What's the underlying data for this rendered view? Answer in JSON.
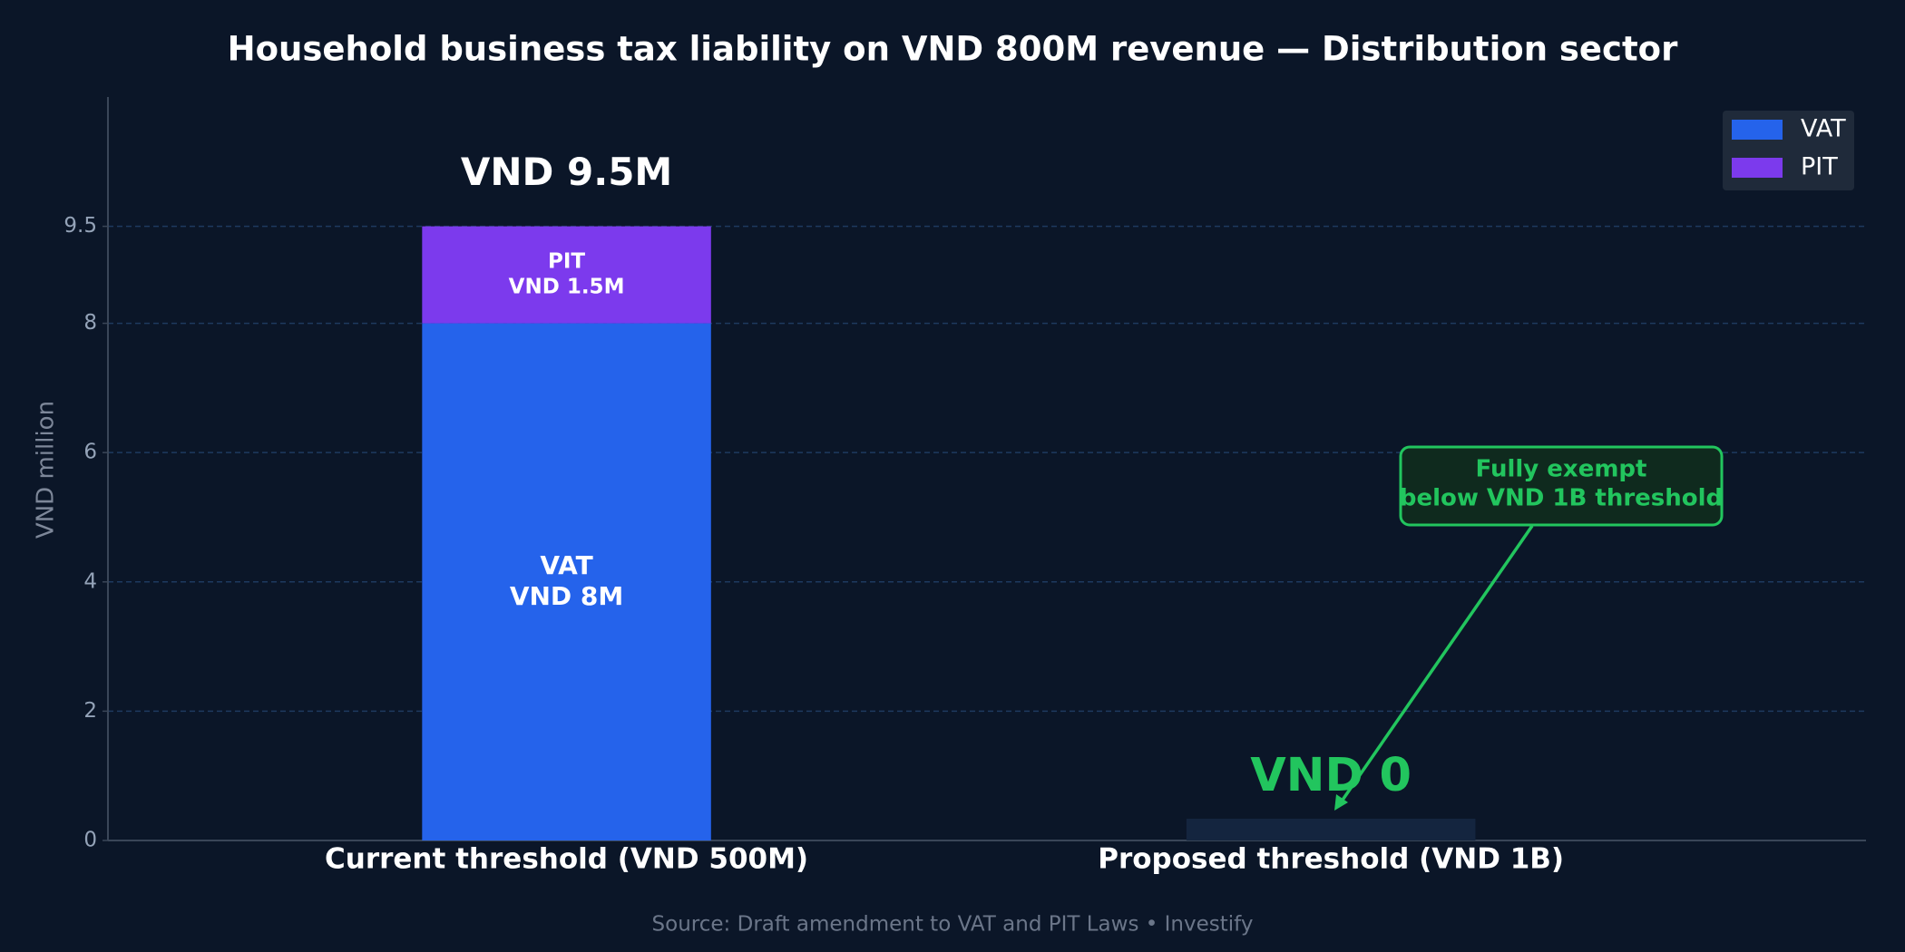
{
  "chart_data": {
    "type": "stacked-bar",
    "title": "Household business tax liability on VND 800M revenue — Distribution sector",
    "ylabel": "VND million",
    "categories": [
      "Current threshold (VND 500M)",
      "Proposed threshold (VND 1B)"
    ],
    "series": [
      {
        "name": "VAT",
        "color": "#2563eb",
        "values": [
          8,
          0
        ],
        "value_labels": [
          "VND 8M",
          null
        ]
      },
      {
        "name": "PIT",
        "color": "#7c3aed",
        "values": [
          1.5,
          0
        ],
        "value_labels": [
          "VND 1.5M",
          null
        ]
      }
    ],
    "total_labels": [
      "VND 9.5M",
      "VND 0"
    ],
    "ylim": [
      0,
      11.5
    ],
    "yticks": [
      0,
      2,
      4,
      6,
      8,
      9.5
    ],
    "grid": true,
    "legend": "upper right",
    "annotation_lines": [
      "Fully exempt",
      "below VND 1B threshold"
    ],
    "source": "Source: Draft amendment to VAT and PIT Laws  •  Investify"
  }
}
